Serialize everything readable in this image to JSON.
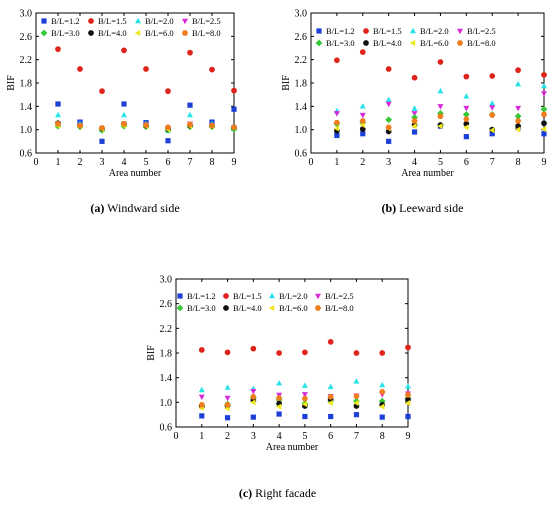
{
  "panels": [
    {
      "label": "(a)",
      "caption": "Windward side"
    },
    {
      "label": "(b)",
      "caption": "Leeward side"
    },
    {
      "label": "(c)",
      "caption": "Right facade"
    }
  ],
  "series_style": [
    {
      "name": "B/L=1.2",
      "color": "#1c3fd8",
      "marker": "square"
    },
    {
      "name": "B/L=1.5",
      "color": "#e0241b",
      "marker": "circle"
    },
    {
      "name": "B/L=2.0",
      "color": "#27e3e8",
      "marker": "triangle-up"
    },
    {
      "name": "B/L=2.5",
      "color": "#d92ad9",
      "marker": "triangle-down"
    },
    {
      "name": "B/L=3.0",
      "color": "#36c736",
      "marker": "diamond"
    },
    {
      "name": "B/L=4.0",
      "color": "#111111",
      "marker": "circle"
    },
    {
      "name": "B/L=6.0",
      "color": "#f0e81e",
      "marker": "triangle-left"
    },
    {
      "name": "B/L=8.0",
      "color": "#f07e1e",
      "marker": "hexagon"
    }
  ],
  "chart_data": [
    {
      "type": "scatter",
      "xlabel": "Area number",
      "ylabel": "BIF",
      "xlim": [
        0,
        9
      ],
      "ylim": [
        0.6,
        3.0
      ],
      "xticks": [
        0,
        1,
        2,
        3,
        4,
        5,
        6,
        7,
        8,
        9
      ],
      "yticks": [
        0.6,
        1.0,
        1.4,
        1.8,
        2.2,
        2.6,
        3.0
      ],
      "x": [
        1,
        2,
        3,
        4,
        5,
        6,
        7,
        8,
        9
      ],
      "series": [
        {
          "name": "B/L=1.2",
          "values": [
            1.44,
            1.13,
            0.8,
            1.44,
            1.12,
            0.81,
            1.42,
            1.13,
            1.35
          ]
        },
        {
          "name": "B/L=1.5",
          "values": [
            2.38,
            2.04,
            1.66,
            2.36,
            2.04,
            1.66,
            2.32,
            2.03,
            1.67
          ]
        },
        {
          "name": "B/L=2.0",
          "values": [
            1.25,
            1.1,
            1.0,
            1.25,
            1.1,
            0.98,
            1.25,
            1.1,
            1.01
          ]
        },
        {
          "name": "B/L=2.5",
          "values": [
            1.1,
            1.06,
            1.01,
            1.1,
            1.07,
            1.03,
            1.1,
            1.07,
            1.03
          ]
        },
        {
          "name": "B/L=3.0",
          "values": [
            1.06,
            1.05,
            0.99,
            1.06,
            1.05,
            0.99,
            1.05,
            1.05,
            1.01
          ]
        },
        {
          "name": "B/L=4.0",
          "values": [
            1.11,
            1.07,
            1.02,
            1.1,
            1.07,
            1.01,
            1.07,
            1.07,
            1.04
          ]
        },
        {
          "name": "B/L=6.0",
          "values": [
            1.07,
            1.06,
            1.01,
            1.07,
            1.06,
            1.0,
            1.06,
            1.06,
            1.03
          ]
        },
        {
          "name": "B/L=8.0",
          "values": [
            1.1,
            1.07,
            1.03,
            1.1,
            1.08,
            1.04,
            1.09,
            1.07,
            1.04
          ]
        }
      ]
    },
    {
      "type": "scatter",
      "xlabel": "Area number",
      "ylabel": "BIF",
      "xlim": [
        0,
        9
      ],
      "ylim": [
        0.6,
        3.0
      ],
      "xticks": [
        0,
        1,
        2,
        3,
        4,
        5,
        6,
        7,
        8,
        9
      ],
      "yticks": [
        0.6,
        1.0,
        1.4,
        1.8,
        2.2,
        2.6,
        3.0
      ],
      "x": [
        1,
        2,
        3,
        4,
        5,
        6,
        7,
        8,
        9
      ],
      "series": [
        {
          "name": "B/L=1.2",
          "values": [
            0.9,
            0.93,
            0.8,
            0.96,
            1.06,
            0.88,
            0.93,
            1.03,
            0.93
          ]
        },
        {
          "name": "B/L=1.5",
          "values": [
            2.19,
            2.33,
            2.04,
            1.89,
            2.16,
            1.91,
            1.92,
            2.02,
            1.94
          ]
        },
        {
          "name": "B/L=2.0",
          "values": [
            1.32,
            1.4,
            1.51,
            1.36,
            1.66,
            1.57,
            1.45,
            1.78,
            1.75
          ]
        },
        {
          "name": "B/L=2.5",
          "values": [
            1.28,
            1.25,
            1.44,
            1.28,
            1.4,
            1.37,
            1.38,
            1.37,
            1.62
          ]
        },
        {
          "name": "B/L=3.0",
          "values": [
            1.1,
            1.12,
            1.17,
            1.21,
            1.28,
            1.26,
            1.26,
            1.23,
            1.35
          ]
        },
        {
          "name": "B/L=4.0",
          "values": [
            0.98,
            1.01,
            0.97,
            1.08,
            1.08,
            1.1,
            1.0,
            1.06,
            1.11
          ]
        },
        {
          "name": "B/L=6.0",
          "values": [
            1.02,
            1.08,
            1.02,
            1.06,
            1.06,
            1.04,
            0.99,
            1.0,
            1.01
          ]
        },
        {
          "name": "B/L=8.0",
          "values": [
            1.12,
            1.15,
            1.04,
            1.15,
            1.23,
            1.18,
            1.25,
            1.15,
            1.26
          ]
        }
      ]
    },
    {
      "type": "scatter",
      "xlabel": "Area number",
      "ylabel": "BIF",
      "xlim": [
        0,
        9
      ],
      "ylim": [
        0.6,
        3.0
      ],
      "xticks": [
        0,
        1,
        2,
        3,
        4,
        5,
        6,
        7,
        8,
        9
      ],
      "yticks": [
        0.6,
        1.0,
        1.4,
        1.8,
        2.2,
        2.6,
        3.0
      ],
      "x": [
        1,
        2,
        3,
        4,
        5,
        6,
        7,
        8,
        9
      ],
      "series": [
        {
          "name": "B/L=1.2",
          "values": [
            0.78,
            0.75,
            0.76,
            0.81,
            0.77,
            0.77,
            0.8,
            0.76,
            0.77
          ]
        },
        {
          "name": "B/L=1.5",
          "values": [
            1.85,
            1.81,
            1.87,
            1.8,
            1.81,
            1.98,
            1.8,
            1.8,
            1.89
          ]
        },
        {
          "name": "B/L=2.0",
          "values": [
            1.2,
            1.24,
            1.22,
            1.31,
            1.27,
            1.25,
            1.34,
            1.28,
            1.26
          ]
        },
        {
          "name": "B/L=2.5",
          "values": [
            1.09,
            1.07,
            1.18,
            1.12,
            1.13,
            1.1,
            1.11,
            1.13,
            1.14
          ]
        },
        {
          "name": "B/L=3.0",
          "values": [
            0.95,
            0.97,
            1.07,
            1.04,
            0.98,
            1.02,
            1.02,
            1.02,
            1.07
          ]
        },
        {
          "name": "B/L=4.0",
          "values": [
            0.93,
            0.94,
            1.03,
            0.98,
            0.94,
            1.05,
            0.94,
            0.96,
            1.04
          ]
        },
        {
          "name": "B/L=6.0",
          "values": [
            0.91,
            0.9,
            1.0,
            0.93,
            0.97,
            0.99,
            0.99,
            0.93,
            0.99
          ]
        },
        {
          "name": "B/L=8.0",
          "values": [
            0.96,
            0.96,
            1.09,
            1.07,
            1.06,
            1.09,
            1.1,
            1.17,
            1.12
          ]
        }
      ]
    }
  ]
}
